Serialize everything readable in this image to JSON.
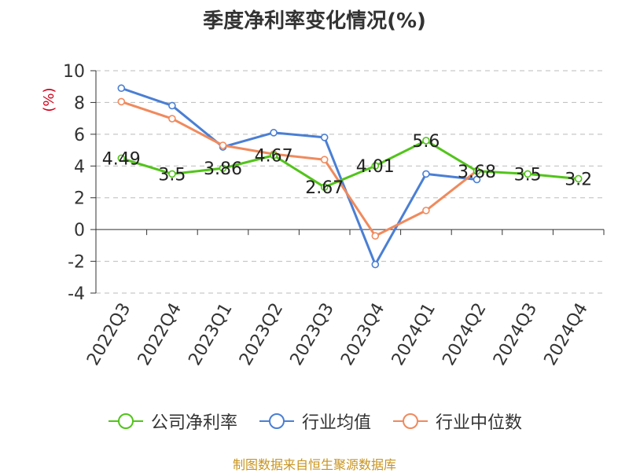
{
  "chart_data": {
    "type": "line",
    "title": "季度净利率变化情况(%)",
    "ylabel": "(%)",
    "ylim": [
      -4,
      10
    ],
    "yticks": [
      "10",
      "8",
      "6",
      "4",
      "2",
      "0",
      "-2",
      "-4"
    ],
    "categories": [
      "2022Q3",
      "2022Q4",
      "2023Q1",
      "2023Q2",
      "2023Q3",
      "2023Q4",
      "2024Q1",
      "2024Q2",
      "2024Q3",
      "2024Q4"
    ],
    "grid": true,
    "legend_position": "bottom",
    "series": [
      {
        "name": "公司净利率",
        "color": "#52c41a",
        "values": [
          4.49,
          3.5,
          3.86,
          4.67,
          2.67,
          4.01,
          5.6,
          3.68,
          3.5,
          3.2
        ],
        "labels": [
          "4.49",
          "3.5",
          "3.86",
          "4.67",
          "2.67",
          "4.01",
          "5.6",
          "3.68",
          "3.5",
          "3.2"
        ]
      },
      {
        "name": "行业均值",
        "color": "#4a7fd4",
        "values": [
          8.9,
          7.8,
          5.2,
          6.1,
          5.8,
          -2.2,
          3.5,
          3.15,
          null,
          null
        ]
      },
      {
        "name": "行业中位数",
        "color": "#f08a5d",
        "values": [
          8.05,
          6.98,
          5.3,
          4.75,
          4.4,
          -0.4,
          1.2,
          3.7,
          null,
          null
        ]
      }
    ]
  },
  "source": "制图数据来自恒生聚源数据库"
}
